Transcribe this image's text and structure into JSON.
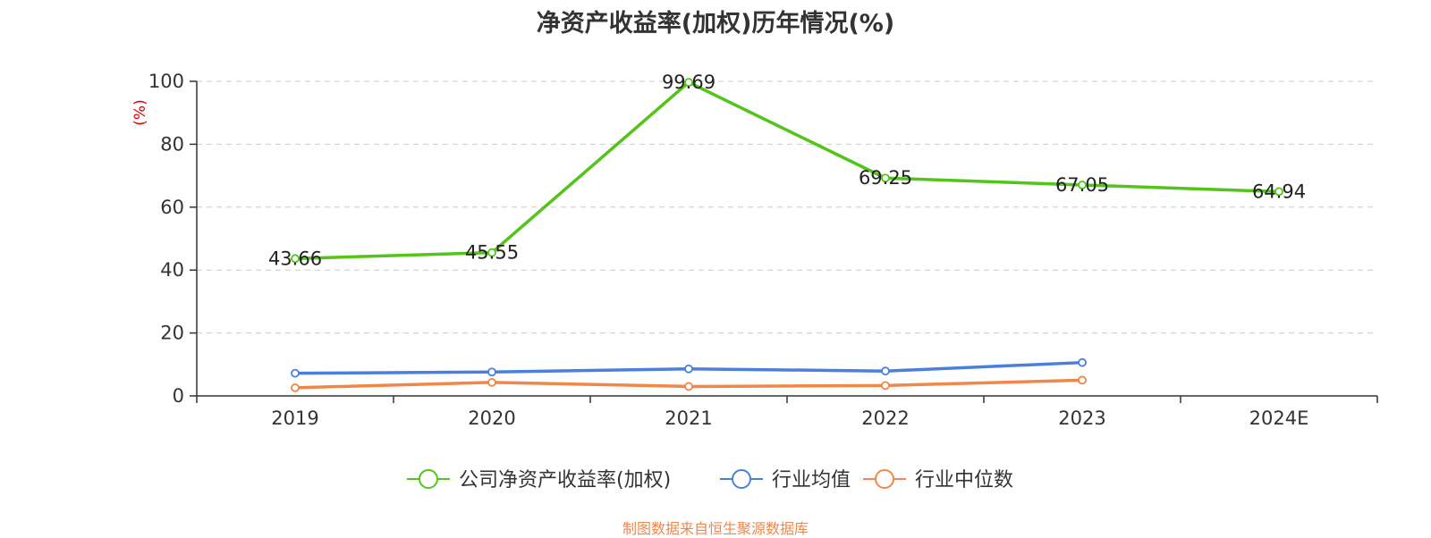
{
  "title": "净资产收益率(加权)历年情况(%)",
  "source": "制图数据来自恒生聚源数据库",
  "colors": {
    "source_text": "#f0874a",
    "unit_text": "#e00000",
    "axis": "#333333",
    "grid": "#cccccc"
  },
  "chart_data": {
    "type": "line",
    "title": "净资产收益率(加权)历年情况(%)",
    "ylabel": "(%)",
    "xlabel": "",
    "categories": [
      "2019",
      "2020",
      "2021",
      "2022",
      "2023",
      "2024E"
    ],
    "ylim": [
      0,
      100
    ],
    "yticks": [
      0,
      20,
      40,
      60,
      80,
      100
    ],
    "grid": "horizontal dashed",
    "legend_position": "bottom",
    "series": [
      {
        "name": "公司净资产收益率(加权)",
        "color": "#52c41a",
        "values": [
          43.66,
          45.55,
          99.69,
          69.25,
          67.05,
          64.94
        ],
        "labels": [
          "43.66",
          "45.55",
          "99.69",
          "69.25",
          "67.05",
          "64.94"
        ]
      },
      {
        "name": "行业均值",
        "color": "#4a7fdc",
        "values": [
          7.2,
          7.6,
          8.6,
          7.9,
          10.6,
          null
        ]
      },
      {
        "name": "行业中位数",
        "color": "#f0874a",
        "values": [
          2.6,
          4.3,
          3.0,
          3.3,
          5.0,
          null
        ]
      }
    ]
  }
}
